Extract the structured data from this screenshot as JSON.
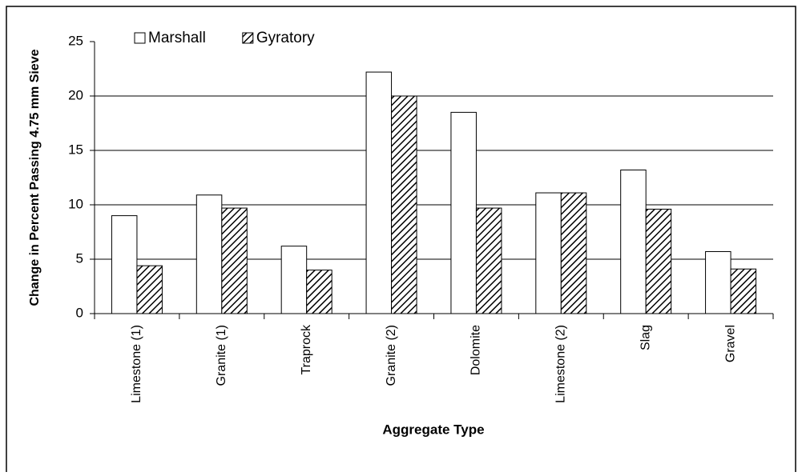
{
  "chart_data": {
    "type": "bar",
    "x_label": "Aggregate Type",
    "y_label": "Change in Percent Passing 4.75 mm Sieve",
    "categories": [
      "Limestone (1)",
      "Granite (1)",
      "Traprock",
      "Granite (2)",
      "Dolomite",
      "Limestone (2)",
      "Slag",
      "Gravel"
    ],
    "series": [
      {
        "name": "Marshall",
        "color": "#ffffff",
        "values": [
          9.0,
          10.9,
          6.2,
          22.2,
          18.5,
          11.1,
          13.2,
          5.7
        ]
      },
      {
        "name": "Gyratory",
        "color": "#000000",
        "fill_pattern": "diagonal",
        "values": [
          4.4,
          9.7,
          4.0,
          20.0,
          9.7,
          11.1,
          9.6,
          4.1
        ]
      }
    ],
    "ylim": [
      0,
      25
    ],
    "yticks": [
      0,
      5,
      10,
      15,
      20,
      25
    ],
    "grid": true,
    "legend": "top-left"
  }
}
